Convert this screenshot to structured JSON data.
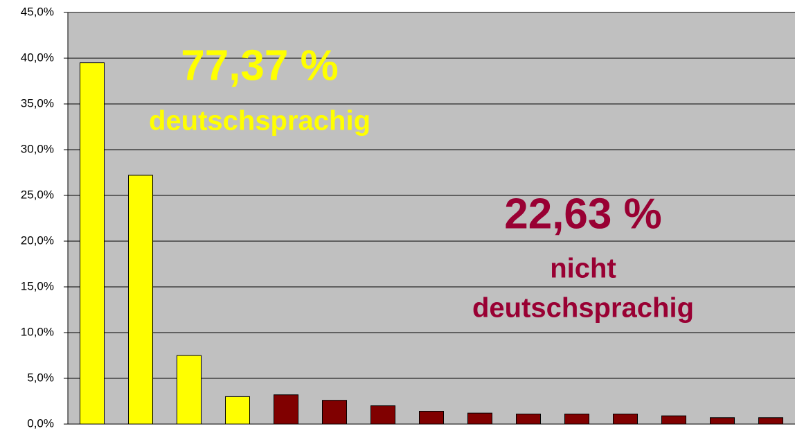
{
  "chart_data": {
    "type": "bar",
    "categories": [
      null,
      null,
      null,
      null,
      null,
      null,
      null,
      null,
      null,
      null,
      null,
      null,
      null,
      null,
      null
    ],
    "values": [
      39.5,
      27.2,
      7.5,
      3.0,
      3.2,
      2.6,
      2.0,
      1.4,
      1.2,
      1.1,
      1.1,
      1.1,
      0.9,
      0.7,
      0.7
    ],
    "colors": [
      "#ffff00",
      "#ffff00",
      "#ffff00",
      "#ffff00",
      "#800000",
      "#800000",
      "#800000",
      "#800000",
      "#800000",
      "#800000",
      "#800000",
      "#800000",
      "#800000",
      "#800000",
      "#800000"
    ],
    "ylim": [
      0,
      45
    ],
    "yticks": [
      {
        "value": 0,
        "label": "0,0%"
      },
      {
        "value": 5,
        "label": "5,0%"
      },
      {
        "value": 10,
        "label": "10,0%"
      },
      {
        "value": 15,
        "label": "15,0%"
      },
      {
        "value": 20,
        "label": "20,0%"
      },
      {
        "value": 25,
        "label": "25,0%"
      },
      {
        "value": 30,
        "label": "30,0%"
      },
      {
        "value": 35,
        "label": "35,0%"
      },
      {
        "value": 40,
        "label": "40,0%"
      },
      {
        "value": 45,
        "label": "45,0%"
      }
    ],
    "grid": true,
    "annotations": [
      {
        "text": "77,37 %",
        "color": "#ffff00"
      },
      {
        "text": "deutschsprachig",
        "color": "#ffff00"
      },
      {
        "text": "22,63 %",
        "color": "#990033"
      },
      {
        "text": "nicht",
        "color": "#990033"
      },
      {
        "text": "deutschsprachig",
        "color": "#990033"
      }
    ]
  }
}
